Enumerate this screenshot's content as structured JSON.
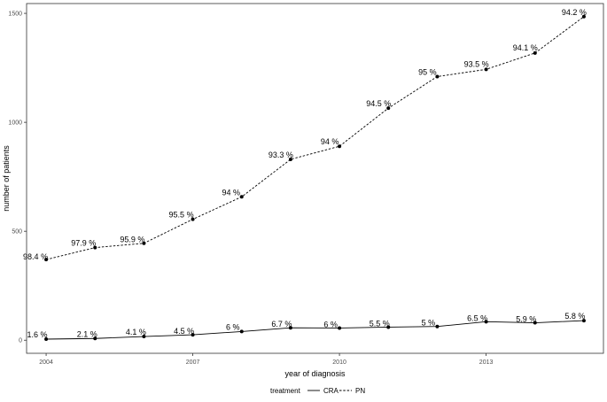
{
  "chart_data": {
    "type": "line",
    "title": "",
    "xlabel": "year of diagnosis",
    "ylabel": "number of patients",
    "x": [
      2004,
      2005,
      2006,
      2007,
      2008,
      2009,
      2010,
      2011,
      2012,
      2013,
      2014,
      2015
    ],
    "x_ticks": [
      2004,
      2007,
      2010,
      2013
    ],
    "y_ticks": [
      0,
      500,
      1000,
      1500
    ],
    "xlim": [
      2003.6,
      2015.4
    ],
    "ylim": [
      -60,
      1545
    ],
    "grid": false,
    "legend": {
      "title": "treatment",
      "position": "bottom",
      "entries": [
        "CRA",
        "PN"
      ]
    },
    "series": [
      {
        "name": "CRA",
        "line_style": "solid",
        "values": [
          5,
          8,
          17,
          25,
          40,
          57,
          56,
          60,
          63,
          85,
          80,
          90
        ],
        "labels": [
          "1.6 %",
          "2.1 %",
          "4.1 %",
          "4.5 %",
          "6 %",
          "6.7 %",
          "6 %",
          "5.5 %",
          "5 %",
          "6.5 %",
          "5.9 %",
          "5.8 %"
        ]
      },
      {
        "name": "PN",
        "line_style": "dashed",
        "values": [
          370,
          425,
          445,
          555,
          658,
          830,
          890,
          1065,
          1210,
          1243,
          1318,
          1485
        ],
        "labels": [
          "98.4 %",
          "97.9 %",
          "95.9 %",
          "95.5 %",
          "94 %",
          "93.3 %",
          "94 %",
          "94.5 %",
          "95 %",
          "93.5 %",
          "94.1 %",
          "94.2 %"
        ]
      }
    ]
  }
}
